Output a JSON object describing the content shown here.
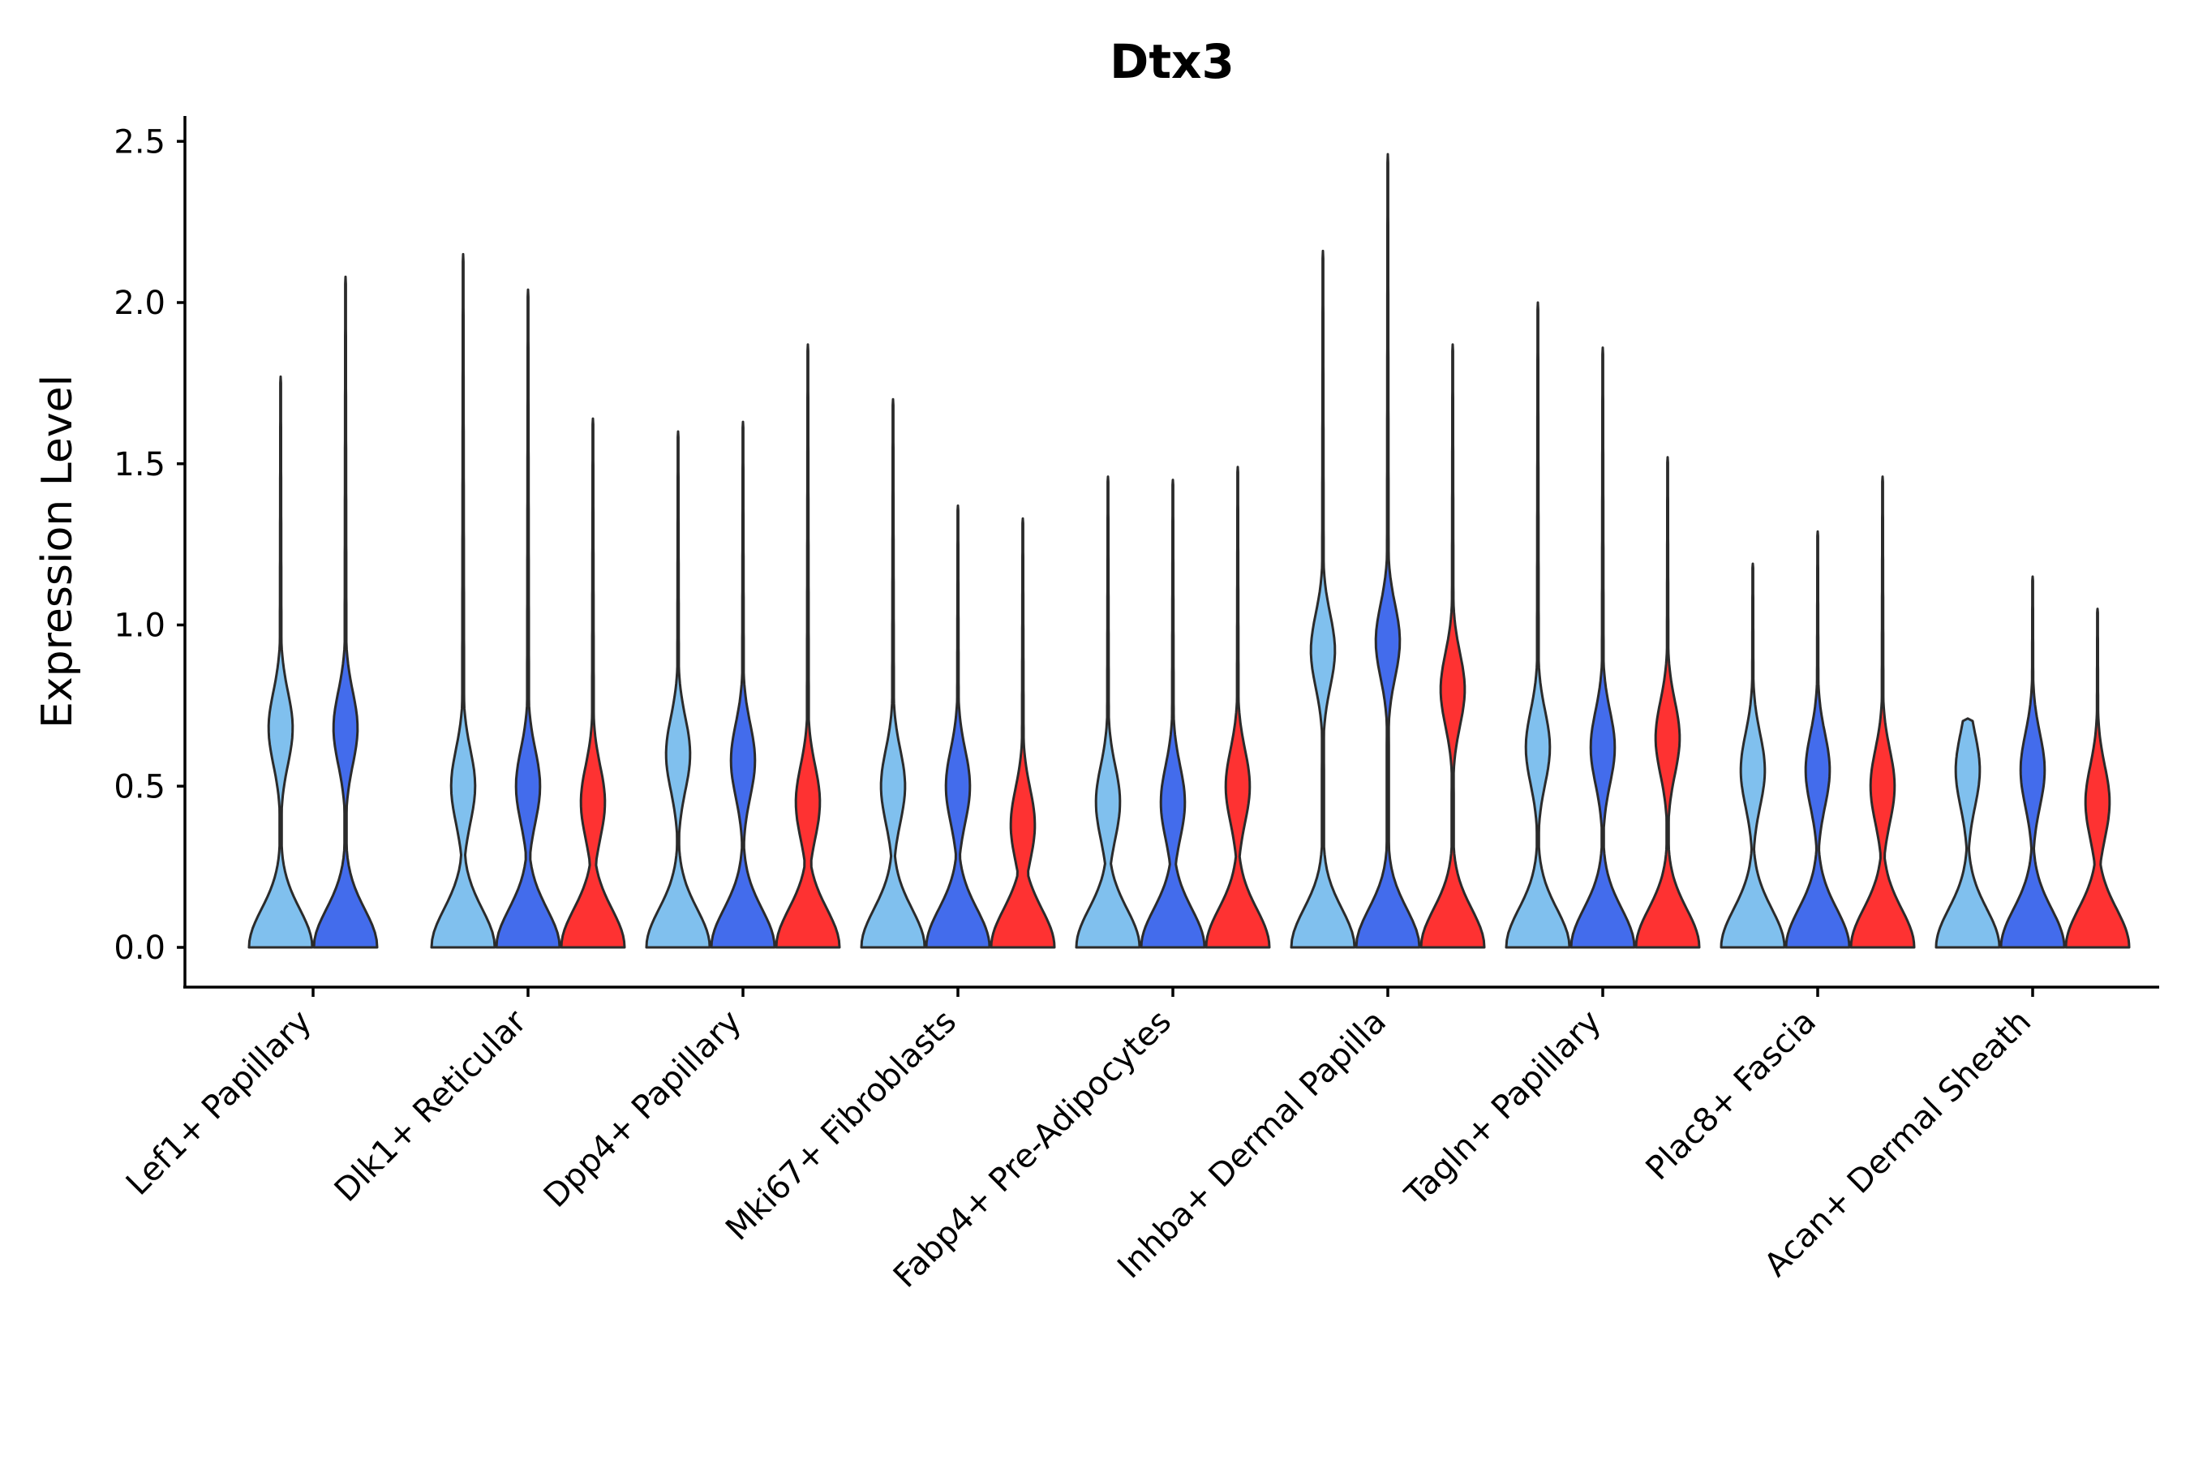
{
  "chart_data": {
    "type": "violin",
    "title": "Dtx3",
    "xlabel": "",
    "ylabel": "Expression Level",
    "ylim": [
      -0.12,
      2.58
    ],
    "yticks": [
      0.0,
      0.5,
      1.0,
      1.5,
      2.0,
      2.5
    ],
    "ytick_labels": [
      "0.0",
      "0.5",
      "1.0",
      "1.5",
      "2.0",
      "2.5"
    ],
    "categories": [
      "Lef1+ Papillary",
      "Dlk1+ Reticular",
      "Dpp4+ Papillary",
      "Mki67+ Fibroblasts",
      "Fabp4+ Pre-Adipocytes",
      "Inhba+ Dermal Papilla",
      "Tagln+ Papillary",
      "Plac8+ Fascia",
      "Acan+ Dermal Sheath"
    ],
    "series_colors": [
      "#80c0ee",
      "#436cec",
      "#fe3232"
    ],
    "groups": [
      {
        "category": "Lef1+ Papillary",
        "violins": [
          {
            "series": 0,
            "max": 1.77,
            "width": 1.0,
            "mode": 0.68
          },
          {
            "series": 1,
            "max": 2.08,
            "width": 1.0,
            "mode": 0.68
          }
        ]
      },
      {
        "category": "Dlk1+ Reticular",
        "violins": [
          {
            "series": 0,
            "max": 2.15,
            "width": 1.0,
            "mode": 0.5
          },
          {
            "series": 1,
            "max": 2.04,
            "width": 1.0,
            "mode": 0.5
          },
          {
            "series": 2,
            "max": 1.64,
            "width": 1.0,
            "mode": 0.45
          }
        ]
      },
      {
        "category": "Dpp4+ Papillary",
        "violins": [
          {
            "series": 0,
            "max": 1.6,
            "width": 1.0,
            "mode": 0.6
          },
          {
            "series": 1,
            "max": 1.63,
            "width": 1.0,
            "mode": 0.58
          },
          {
            "series": 2,
            "max": 1.87,
            "width": 1.0,
            "mode": 0.45
          }
        ]
      },
      {
        "category": "Mki67+ Fibroblasts",
        "violins": [
          {
            "series": 0,
            "max": 1.7,
            "width": 1.0,
            "mode": 0.5
          },
          {
            "series": 1,
            "max": 1.37,
            "width": 1.0,
            "mode": 0.5
          },
          {
            "series": 2,
            "max": 1.33,
            "width": 1.0,
            "mode": 0.38
          }
        ]
      },
      {
        "category": "Fabp4+ Pre-Adipocytes",
        "violins": [
          {
            "series": 0,
            "max": 1.46,
            "width": 1.0,
            "mode": 0.45
          },
          {
            "series": 1,
            "max": 1.45,
            "width": 1.0,
            "mode": 0.45
          },
          {
            "series": 2,
            "max": 1.49,
            "width": 1.0,
            "mode": 0.5
          }
        ]
      },
      {
        "category": "Inhba+ Dermal Papilla",
        "violins": [
          {
            "series": 0,
            "max": 2.16,
            "width": 1.0,
            "mode": 0.92
          },
          {
            "series": 1,
            "max": 2.46,
            "width": 1.0,
            "mode": 0.95
          },
          {
            "series": 2,
            "max": 1.87,
            "width": 1.0,
            "mode": 0.8
          }
        ]
      },
      {
        "category": "Tagln+ Papillary",
        "violins": [
          {
            "series": 0,
            "max": 2.0,
            "width": 1.0,
            "mode": 0.62
          },
          {
            "series": 1,
            "max": 1.86,
            "width": 1.0,
            "mode": 0.62
          },
          {
            "series": 2,
            "max": 1.52,
            "width": 1.0,
            "mode": 0.65
          }
        ]
      },
      {
        "category": "Plac8+ Fascia",
        "violins": [
          {
            "series": 0,
            "max": 1.19,
            "width": 1.0,
            "mode": 0.55
          },
          {
            "series": 1,
            "max": 1.29,
            "width": 1.0,
            "mode": 0.55
          },
          {
            "series": 2,
            "max": 1.46,
            "width": 1.0,
            "mode": 0.5
          }
        ]
      },
      {
        "category": "Acan+ Dermal Sheath",
        "violins": [
          {
            "series": 0,
            "max": 0.71,
            "width": 1.0,
            "mode": 0.55
          },
          {
            "series": 1,
            "max": 1.15,
            "width": 1.0,
            "mode": 0.55
          },
          {
            "series": 2,
            "max": 1.05,
            "width": 1.0,
            "mode": 0.45
          }
        ]
      }
    ]
  }
}
